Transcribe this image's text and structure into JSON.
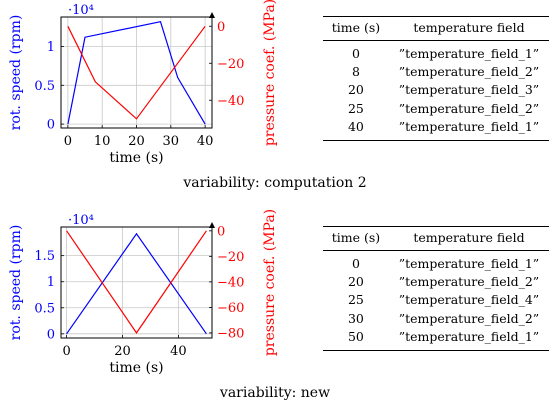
{
  "panels": [
    {
      "caption": "variability: computation 2",
      "table": {
        "headers": [
          "time (s)",
          "temperature field"
        ],
        "rows": [
          [
            "0",
            "”temperature_field_1”"
          ],
          [
            "8",
            "”temperature_field_2”"
          ],
          [
            "20",
            "”temperature_field_3”"
          ],
          [
            "25",
            "”temperature_field_2”"
          ],
          [
            "40",
            "”temperature_field_1”"
          ]
        ]
      }
    },
    {
      "caption": "variability: new",
      "table": {
        "headers": [
          "time (s)",
          "temperature field"
        ],
        "rows": [
          [
            "0",
            "”temperature_field_1”"
          ],
          [
            "20",
            "”temperature_field_2”"
          ],
          [
            "25",
            "”temperature_field_4”"
          ],
          [
            "30",
            "”temperature_field_2”"
          ],
          [
            "50",
            "”temperature_field_1”"
          ]
        ]
      }
    }
  ],
  "chart_data": [
    {
      "type": "line",
      "xlabel": "time (s)",
      "ylabel": "rot. speed (rpm)",
      "y2label": "pressure coef. (MPa)",
      "exponent_label": "·10⁴",
      "xlim": [
        -2,
        42
      ],
      "ylim": [
        -0.05,
        1.38
      ],
      "y2lim": [
        -55,
        5
      ],
      "xticks": [
        0,
        10,
        20,
        30,
        40
      ],
      "yticks": [
        0,
        0.5,
        1
      ],
      "y2ticks": [
        0,
        -20,
        -40
      ],
      "xtick_labels": [
        "0",
        "10",
        "20",
        "30",
        "40"
      ],
      "ytick_labels": [
        "0",
        "0.5",
        "1"
      ],
      "y2tick_labels": [
        "0",
        "−20",
        "−40"
      ],
      "grid": true,
      "colors": {
        "speed": "#0000ff",
        "pressure": "#ff0000"
      },
      "series": [
        {
          "axis": "left",
          "x": [
            0,
            5,
            27,
            32,
            40
          ],
          "y": [
            0,
            1.12,
            1.32,
            0.6,
            0
          ]
        },
        {
          "axis": "right",
          "x": [
            0,
            8,
            20,
            40
          ],
          "y": [
            0,
            -30,
            -50,
            0
          ]
        }
      ]
    },
    {
      "type": "line",
      "xlabel": "time (s)",
      "ylabel": "rot. speed (rpm)",
      "y2label": "pressure coef. (MPa)",
      "exponent_label": "·10⁴",
      "xlim": [
        -2,
        52
      ],
      "ylim": [
        -0.08,
        2.05
      ],
      "y2lim": [
        -84,
        3
      ],
      "xticks": [
        0,
        20,
        40
      ],
      "yticks": [
        0,
        0.5,
        1,
        1.5
      ],
      "y2ticks": [
        0,
        -20,
        -40,
        -60,
        -80
      ],
      "xtick_labels": [
        "0",
        "20",
        "40"
      ],
      "ytick_labels": [
        "0",
        "0.5",
        "1",
        "1.5"
      ],
      "y2tick_labels": [
        "0",
        "−20",
        "−40",
        "−60",
        "−80"
      ],
      "grid": true,
      "colors": {
        "speed": "#0000ff",
        "pressure": "#ff0000"
      },
      "series": [
        {
          "axis": "left",
          "x": [
            0,
            25,
            50
          ],
          "y": [
            0,
            1.92,
            0
          ]
        },
        {
          "axis": "right",
          "x": [
            0,
            25,
            50
          ],
          "y": [
            0,
            -80,
            0
          ]
        }
      ]
    }
  ]
}
